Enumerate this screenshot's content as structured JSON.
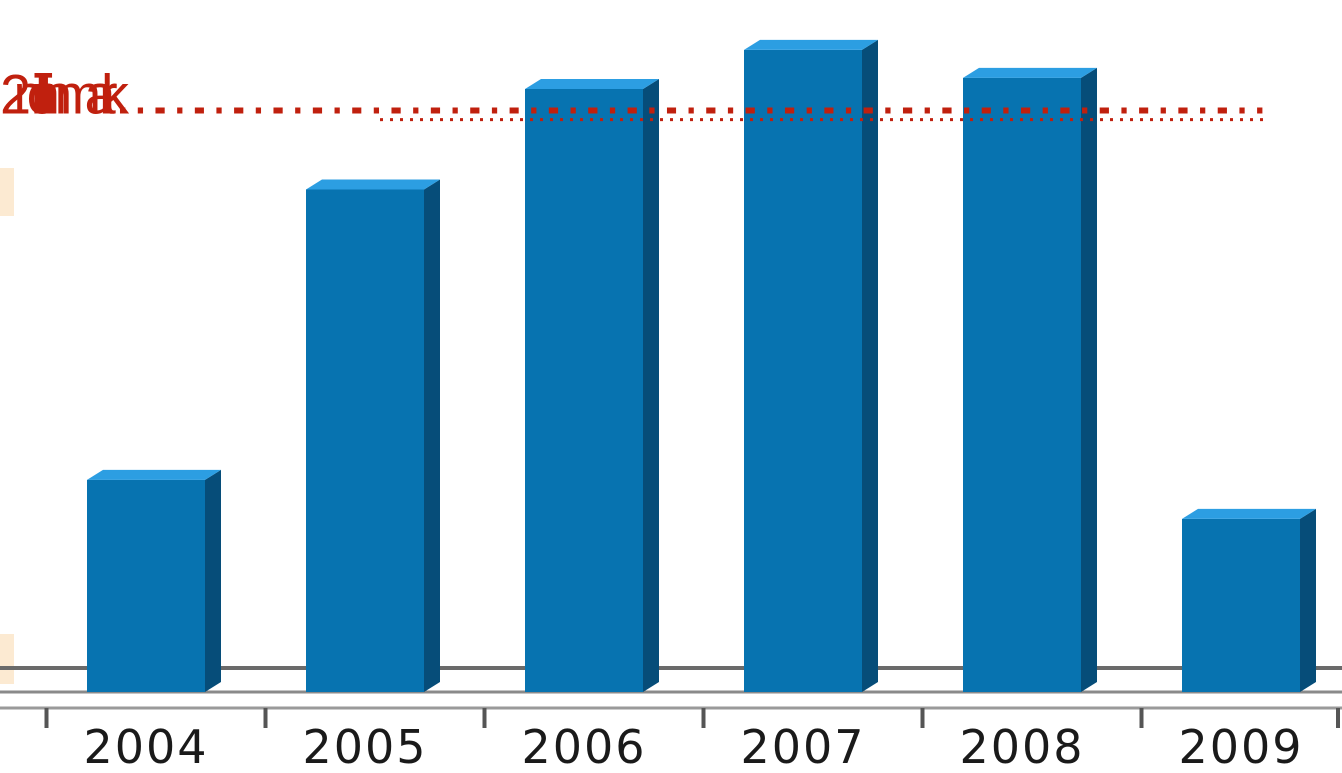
{
  "chart_data": {
    "type": "bar",
    "categories": [
      "2004",
      "2005",
      "2006",
      "2007",
      "2008",
      "2009"
    ],
    "values": [
      1.38,
      1.9,
      2.08,
      2.15,
      2.1,
      1.31
    ],
    "ylim": [
      1.0,
      2.2
    ],
    "grid": false,
    "legend": "none",
    "annotation": {
      "text": "2 million mark……………………………………………………………………………",
      "value": 2.0
    },
    "colors": {
      "bar_front": "#0773b0",
      "bar_top": "#2c9ee2",
      "bar_side": "#064d79",
      "annotation": "#c0200e",
      "baseline": "#555555",
      "accent": "#fcead2"
    }
  }
}
